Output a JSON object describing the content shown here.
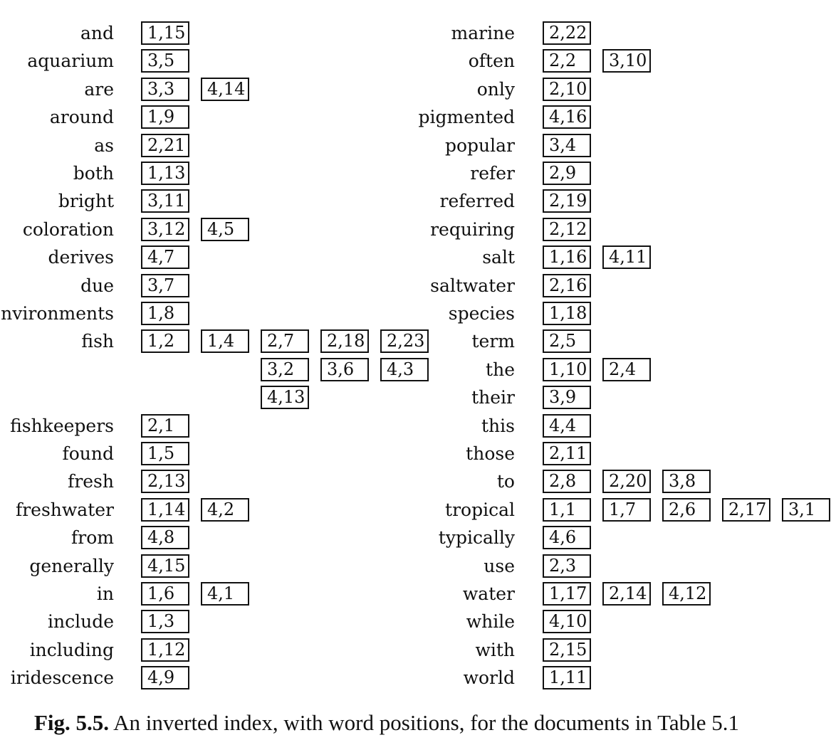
{
  "figure": {
    "caption_label": "Fig. 5.5.",
    "caption_text": "An inverted index, with word positions, for the documents in Table 5.1",
    "left_column": [
      {
        "term": "and",
        "postings": [
          "1,15"
        ]
      },
      {
        "term": "aquarium",
        "postings": [
          "3,5"
        ]
      },
      {
        "term": "are",
        "postings": [
          "3,3",
          "4,14"
        ]
      },
      {
        "term": "around",
        "postings": [
          "1,9"
        ]
      },
      {
        "term": "as",
        "postings": [
          "2,21"
        ]
      },
      {
        "term": "both",
        "postings": [
          "1,13"
        ]
      },
      {
        "term": "bright",
        "postings": [
          "3,11"
        ]
      },
      {
        "term": "coloration",
        "postings": [
          "3,12",
          "4,5"
        ]
      },
      {
        "term": "derives",
        "postings": [
          "4,7"
        ]
      },
      {
        "term": "due",
        "postings": [
          "3,7"
        ]
      },
      {
        "term": "environments",
        "postings": [
          "1,8"
        ]
      },
      {
        "term": "fish",
        "postings": [
          "1,2",
          "1,4",
          "2,7",
          "2,18",
          "2,23",
          "3,2",
          "3,6",
          "4,3",
          "4,13"
        ]
      },
      {
        "term": "fishkeepers",
        "postings": [
          "2,1"
        ]
      },
      {
        "term": "found",
        "postings": [
          "1,5"
        ]
      },
      {
        "term": "fresh",
        "postings": [
          "2,13"
        ]
      },
      {
        "term": "freshwater",
        "postings": [
          "1,14",
          "4,2"
        ]
      },
      {
        "term": "from",
        "postings": [
          "4,8"
        ]
      },
      {
        "term": "generally",
        "postings": [
          "4,15"
        ]
      },
      {
        "term": "in",
        "postings": [
          "1,6",
          "4,1"
        ]
      },
      {
        "term": "include",
        "postings": [
          "1,3"
        ]
      },
      {
        "term": "including",
        "postings": [
          "1,12"
        ]
      },
      {
        "term": "iridescence",
        "postings": [
          "4,9"
        ]
      }
    ],
    "right_column": [
      {
        "term": "marine",
        "postings": [
          "2,22"
        ]
      },
      {
        "term": "often",
        "postings": [
          "2,2",
          "3,10"
        ]
      },
      {
        "term": "only",
        "postings": [
          "2,10"
        ]
      },
      {
        "term": "pigmented",
        "postings": [
          "4,16"
        ]
      },
      {
        "term": "popular",
        "postings": [
          "3,4"
        ]
      },
      {
        "term": "refer",
        "postings": [
          "2,9"
        ]
      },
      {
        "term": "referred",
        "postings": [
          "2,19"
        ]
      },
      {
        "term": "requiring",
        "postings": [
          "2,12"
        ]
      },
      {
        "term": "salt",
        "postings": [
          "1,16",
          "4,11"
        ]
      },
      {
        "term": "saltwater",
        "postings": [
          "2,16"
        ]
      },
      {
        "term": "species",
        "postings": [
          "1,18"
        ]
      },
      {
        "term": "term",
        "postings": [
          "2,5"
        ]
      },
      {
        "term": "the",
        "postings": [
          "1,10",
          "2,4"
        ]
      },
      {
        "term": "their",
        "postings": [
          "3,9"
        ]
      },
      {
        "term": "this",
        "postings": [
          "4,4"
        ]
      },
      {
        "term": "those",
        "postings": [
          "2,11"
        ]
      },
      {
        "term": "to",
        "postings": [
          "2,8",
          "2,20",
          "3,8"
        ]
      },
      {
        "term": "tropical",
        "postings": [
          "1,1",
          "1,7",
          "2,6",
          "2,17",
          "3,1"
        ]
      },
      {
        "term": "typically",
        "postings": [
          "4,6"
        ]
      },
      {
        "term": "use",
        "postings": [
          "2,3"
        ]
      },
      {
        "term": "water",
        "postings": [
          "1,17",
          "2,14",
          "4,12"
        ]
      },
      {
        "term": "while",
        "postings": [
          "4,10"
        ]
      },
      {
        "term": "with",
        "postings": [
          "2,15"
        ]
      },
      {
        "term": "world",
        "postings": [
          "1,11"
        ]
      }
    ]
  }
}
